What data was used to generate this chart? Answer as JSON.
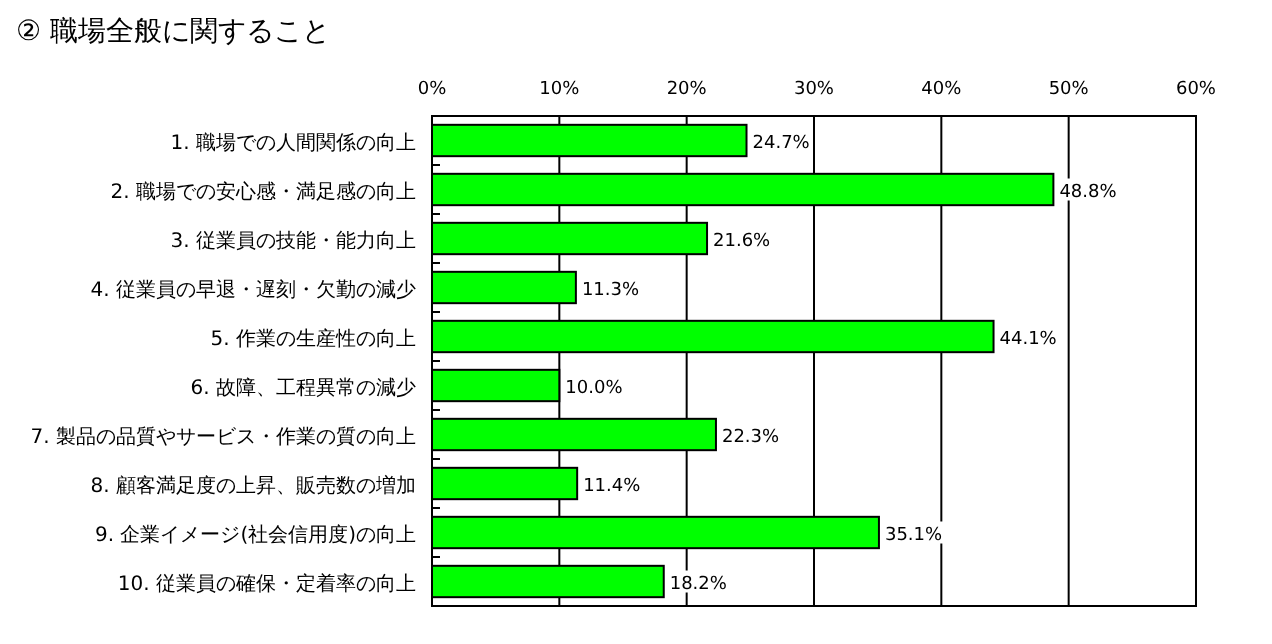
{
  "chart_data": {
    "type": "bar",
    "orientation": "horizontal",
    "title": "② 職場全般に関すること",
    "categories": [
      "1. 職場での人間関係の向上",
      "2. 職場での安心感・満足感の向上",
      "3. 従業員の技能・能力向上",
      "4. 従業員の早退・遅刻・欠勤の減少",
      "5. 作業の生産性の向上",
      "6. 故障、工程異常の減少",
      "7. 製品の品質やサービス・作業の質の向上",
      "8. 顧客満足度の上昇、販売数の増加",
      "9. 企業イメージ(社会信用度)の向上",
      "10. 従業員の確保・定着率の向上"
    ],
    "series": [
      {
        "color": "#00ff00",
        "values": [
          24.7,
          48.8,
          21.6,
          11.3,
          44.1,
          10.0,
          22.3,
          11.4,
          35.1,
          18.2
        ]
      }
    ],
    "value_labels": [
      "24.7%",
      "48.8%",
      "21.6%",
      "11.3%",
      "44.1%",
      "10.0%",
      "22.3%",
      "11.4%",
      "35.1%",
      "18.2%"
    ],
    "xlim": [
      0,
      60
    ],
    "xticks": [
      {
        "value": 0,
        "label": "0%"
      },
      {
        "value": 10,
        "label": "10%"
      },
      {
        "value": 20,
        "label": "20%"
      },
      {
        "value": 30,
        "label": "30%"
      },
      {
        "value": 40,
        "label": "40%"
      },
      {
        "value": 50,
        "label": "50%"
      },
      {
        "value": 60,
        "label": "60%"
      }
    ],
    "grid": "x"
  }
}
